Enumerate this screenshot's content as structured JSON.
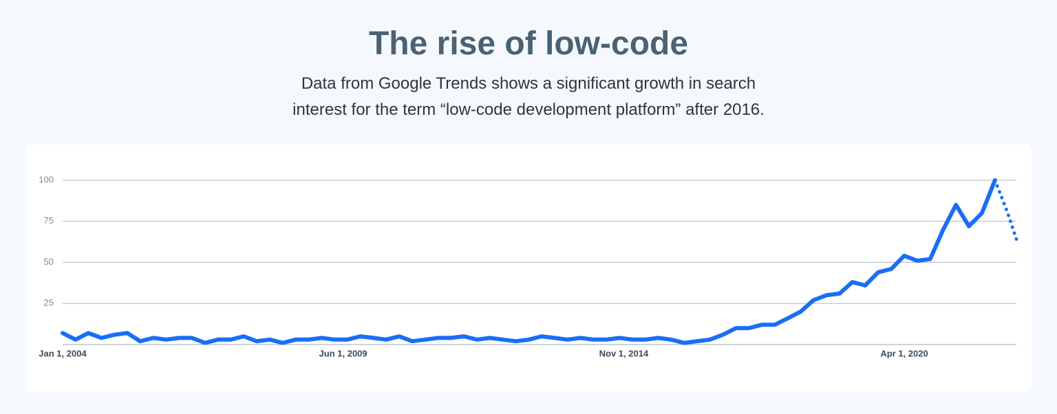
{
  "chart_data": {
    "type": "line",
    "title": "The rise of low-code",
    "subtitle": [
      "Data from Google Trends shows a significant growth in search",
      "interest for the term “low-code development platform” after 2016."
    ],
    "series": [
      {
        "color": "#1a6ef5",
        "dotted": false,
        "x": [
          "2004-01-01",
          "2004-04-01",
          "2004-07-01",
          "2004-10-01",
          "2005-01-01",
          "2005-04-01",
          "2005-07-01",
          "2005-10-01",
          "2006-01-01",
          "2006-04-01",
          "2006-07-01",
          "2006-10-01",
          "2007-01-01",
          "2007-04-01",
          "2007-07-01",
          "2007-10-01",
          "2008-01-01",
          "2008-04-01",
          "2008-07-01",
          "2008-10-01",
          "2009-01-01",
          "2009-04-01",
          "2009-07-01",
          "2009-10-01",
          "2010-01-01",
          "2010-04-01",
          "2010-07-01",
          "2010-10-01",
          "2011-01-01",
          "2011-04-01",
          "2011-07-01",
          "2011-10-01",
          "2012-01-01",
          "2012-04-01",
          "2012-07-01",
          "2012-10-01",
          "2013-01-01",
          "2013-04-01",
          "2013-07-01",
          "2013-10-01",
          "2014-01-01",
          "2014-04-01",
          "2014-07-01",
          "2014-10-01",
          "2015-01-01",
          "2015-04-01",
          "2015-07-01",
          "2015-10-01",
          "2016-01-01",
          "2016-04-01",
          "2016-07-01",
          "2016-10-01",
          "2017-01-01",
          "2017-04-01",
          "2017-07-01",
          "2017-10-01",
          "2018-01-01",
          "2018-04-01",
          "2018-07-01",
          "2018-10-01",
          "2019-01-01",
          "2019-04-01",
          "2019-07-01",
          "2019-10-01",
          "2020-01-01",
          "2020-04-01",
          "2020-07-01",
          "2020-10-01",
          "2021-01-01",
          "2021-04-01",
          "2021-07-01",
          "2021-10-01",
          "2022-01-01"
        ],
        "values": [
          7,
          3,
          7,
          4,
          6,
          7,
          2,
          4,
          3,
          4,
          4,
          1,
          3,
          3,
          5,
          2,
          3,
          1,
          3,
          3,
          4,
          3,
          3,
          5,
          4,
          3,
          5,
          2,
          3,
          4,
          4,
          5,
          3,
          4,
          3,
          2,
          3,
          5,
          4,
          3,
          4,
          3,
          3,
          4,
          3,
          3,
          4,
          3,
          1,
          2,
          3,
          6,
          10,
          10,
          12,
          12,
          16,
          20,
          27,
          30,
          31,
          38,
          36,
          44,
          46,
          54,
          51,
          52,
          70,
          85,
          72,
          80,
          100
        ]
      },
      {
        "color": "#1a6ef5",
        "dotted": true,
        "x": [
          "2022-01-01",
          "2022-04-01",
          "2022-06-01"
        ],
        "values": [
          100,
          80,
          64
        ]
      }
    ],
    "xlim": [
      "2004-01-01",
      "2022-06-01"
    ],
    "xticks": [
      {
        "value": "2004-01-01",
        "label": "Jan 1, 2004"
      },
      {
        "value": "2009-06-01",
        "label": "Jun 1, 2009"
      },
      {
        "value": "2014-11-01",
        "label": "Nov 1, 2014"
      },
      {
        "value": "2020-04-01",
        "label": "Apr 1, 2020"
      }
    ],
    "ylim": [
      0,
      100
    ],
    "yticks": [
      25,
      50,
      75,
      100
    ],
    "grid": true
  }
}
